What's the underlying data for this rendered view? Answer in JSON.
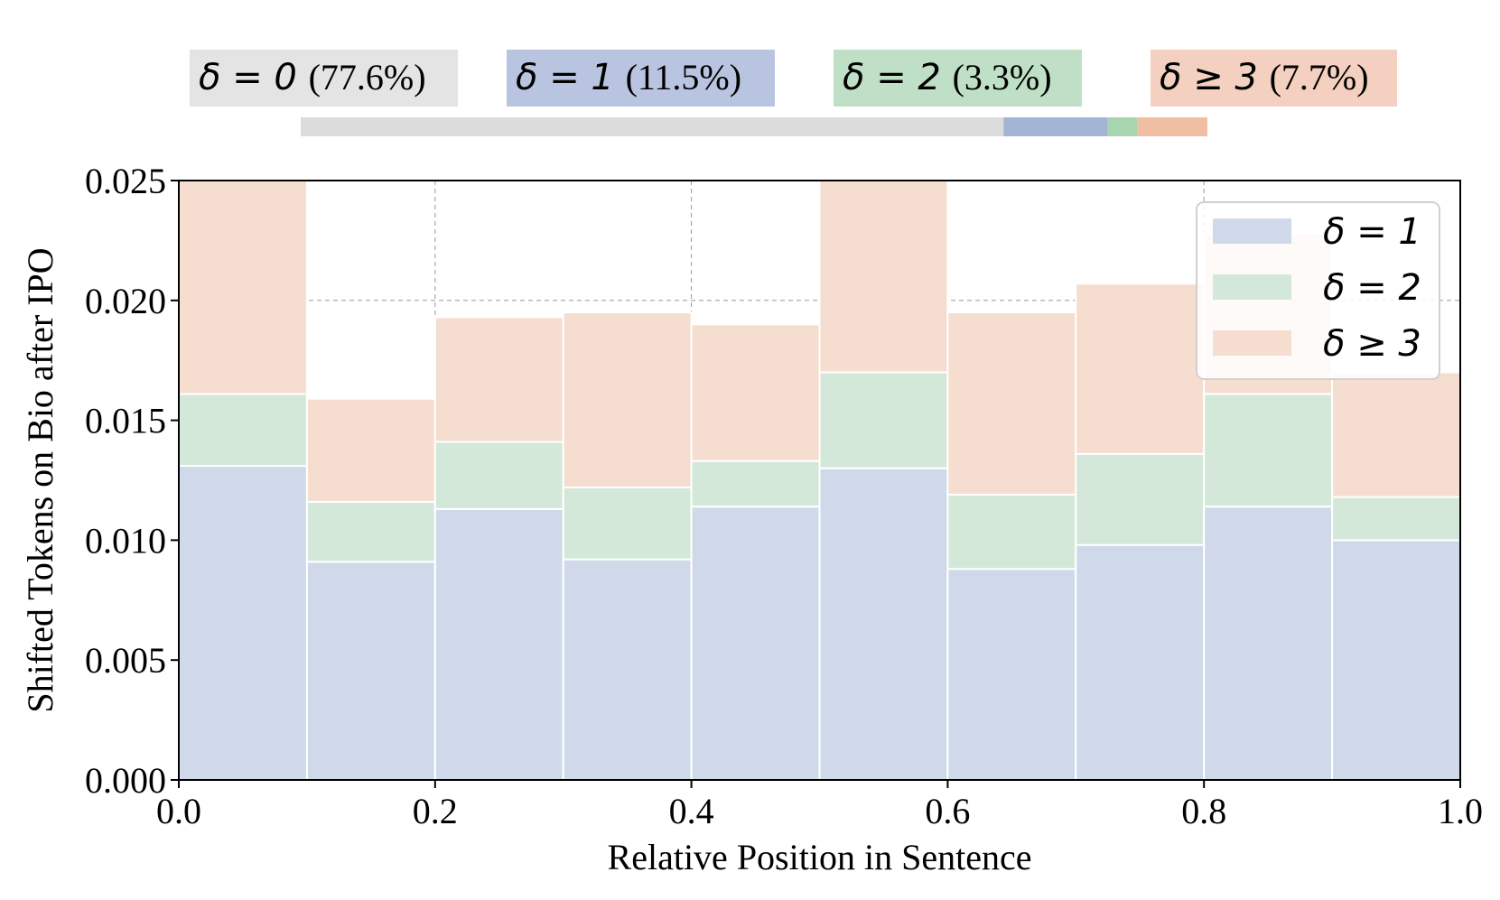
{
  "colors": {
    "delta0": "#e4e4e4",
    "delta1": "#b9c4e0",
    "delta2": "#bfe0c6",
    "delta3": "#f3d0bf",
    "delta0_bar": "#dcdcdc",
    "delta1_bar": "#a3b4d6",
    "delta2_bar": "#a7d5b0",
    "delta3_bar": "#efbea3",
    "fill1": "#d0d9ea",
    "fill2": "#d3e8d9",
    "fill3": "#f5ddd0"
  },
  "top_legend": [
    {
      "sym": "δ = 0",
      "pct": "(77.6%)",
      "key": "delta0",
      "share": 77.6
    },
    {
      "sym": "δ = 1",
      "pct": "(11.5%)",
      "key": "delta1",
      "share": 11.5
    },
    {
      "sym": "δ = 2",
      "pct": "(3.3%)",
      "key": "delta2",
      "share": 3.3
    },
    {
      "sym": "δ ≥ 3",
      "pct": "(7.7%)",
      "key": "delta3",
      "share": 7.7
    }
  ],
  "chart_data": {
    "type": "bar",
    "stacked": true,
    "title": "",
    "xlabel": "Relative Position in Sentence",
    "ylabel": "Shifted Tokens on Bio after IPO",
    "xlim": [
      0.0,
      1.0
    ],
    "ylim": [
      0.0,
      0.025
    ],
    "xticks": [
      "0.0",
      "0.2",
      "0.4",
      "0.6",
      "0.8",
      "1.0"
    ],
    "yticks": [
      "0.000",
      "0.005",
      "0.010",
      "0.015",
      "0.020",
      "0.025"
    ],
    "grid": true,
    "legend_position": "top-right",
    "bin_edges": [
      0.0,
      0.1,
      0.2,
      0.3,
      0.4,
      0.5,
      0.6,
      0.7,
      0.8,
      0.9,
      1.0
    ],
    "series": [
      {
        "name": "δ = 1",
        "key": "fill1",
        "values": [
          0.0131,
          0.0091,
          0.0113,
          0.0092,
          0.0114,
          0.013,
          0.0088,
          0.0098,
          0.0114,
          0.01
        ]
      },
      {
        "name": "δ = 2",
        "key": "fill2",
        "values": [
          0.003,
          0.0025,
          0.0028,
          0.003,
          0.0019,
          0.004,
          0.0031,
          0.0038,
          0.0047,
          0.0018
        ]
      },
      {
        "name": "δ ≥ 3",
        "key": "fill3",
        "values": [
          0.0093,
          0.0043,
          0.0052,
          0.0073,
          0.0057,
          0.0084,
          0.0076,
          0.0071,
          0.0067,
          0.0052
        ]
      }
    ]
  }
}
